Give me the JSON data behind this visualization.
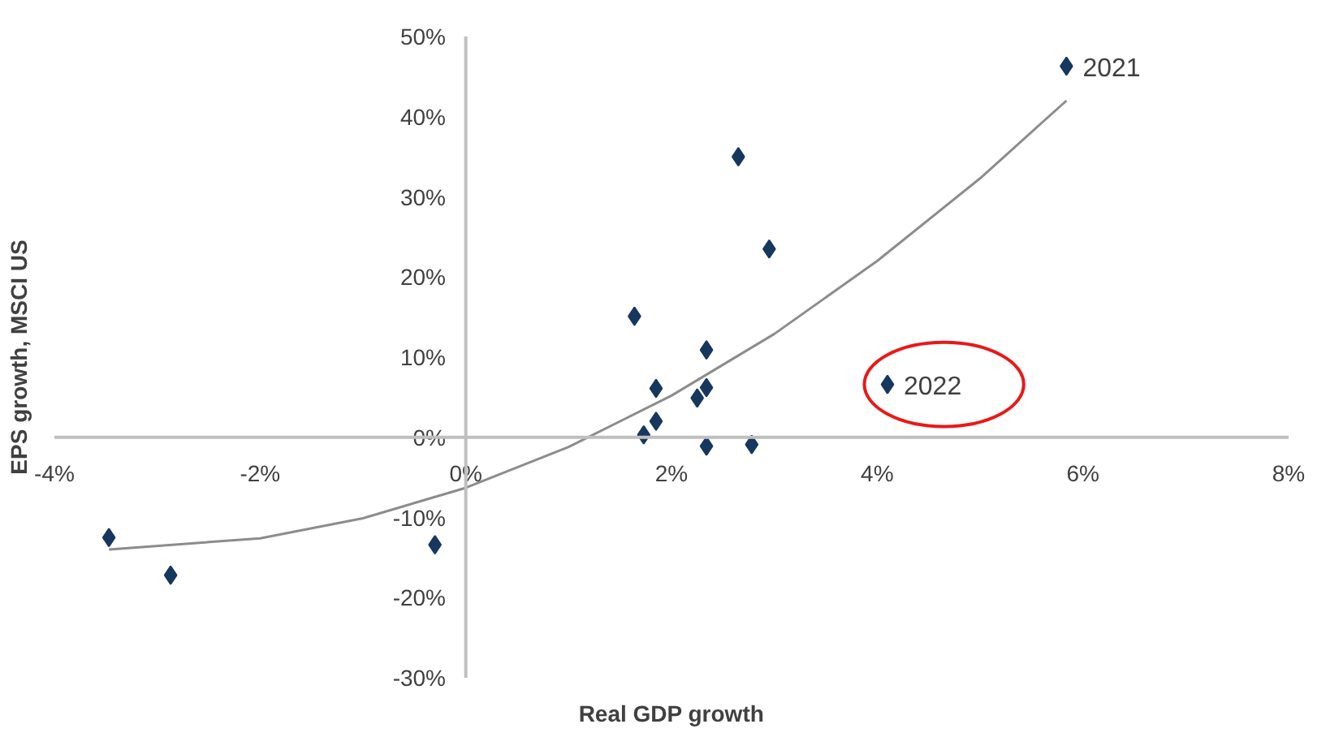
{
  "chart_data": {
    "type": "scatter",
    "xlabel": "Real GDP growth",
    "ylabel": "EPS growth, MSCI US",
    "xlim": [
      -4,
      8
    ],
    "ylim": [
      -30,
      50
    ],
    "xticks": [
      {
        "value": -4,
        "label": "-4%"
      },
      {
        "value": -2,
        "label": "-2%"
      },
      {
        "value": 0,
        "label": "0%"
      },
      {
        "value": 2,
        "label": "2%"
      },
      {
        "value": 4,
        "label": "4%"
      },
      {
        "value": 6,
        "label": "6%"
      },
      {
        "value": 8,
        "label": "8%"
      }
    ],
    "yticks": [
      {
        "value": -30,
        "label": "-30%"
      },
      {
        "value": -20,
        "label": "-20%"
      },
      {
        "value": -10,
        "label": "-10%"
      },
      {
        "value": 0,
        "label": "0%"
      },
      {
        "value": 10,
        "label": "10%"
      },
      {
        "value": 20,
        "label": "20%"
      },
      {
        "value": 30,
        "label": "30%"
      },
      {
        "value": 40,
        "label": "40%"
      },
      {
        "value": 50,
        "label": "50%"
      }
    ],
    "grid": false,
    "legend": false,
    "marker": "diamond",
    "series": [
      {
        "type": "scatter",
        "color": "#17375e",
        "x": [
          -3.47,
          -2.87,
          -0.3,
          1.73,
          1.85,
          1.85,
          1.64,
          2.25,
          2.34,
          2.34,
          2.34,
          2.78,
          2.65,
          2.95,
          4.1,
          5.84
        ],
        "values": [
          -12.5,
          -17.2,
          -13.4,
          0.3,
          2.0,
          6.1,
          15.1,
          4.9,
          6.2,
          10.9,
          -1.1,
          -0.9,
          35.0,
          23.5,
          6.6,
          46.3
        ]
      },
      {
        "type": "line",
        "color": "#8c8c8c",
        "line_style": "solid",
        "marker": "none",
        "x": [
          -3.47,
          -2,
          -1,
          0,
          1,
          2,
          3,
          4,
          5,
          5.84
        ],
        "values": [
          -14.0,
          -12.6,
          -10.1,
          -6.3,
          -1.2,
          5.2,
          12.9,
          22.0,
          32.3,
          42.0
        ]
      }
    ],
    "annotations": [
      {
        "text": "2021",
        "x": 5.84,
        "y": 46.3
      },
      {
        "text": "2022",
        "x": 4.1,
        "y": 6.6
      }
    ]
  }
}
